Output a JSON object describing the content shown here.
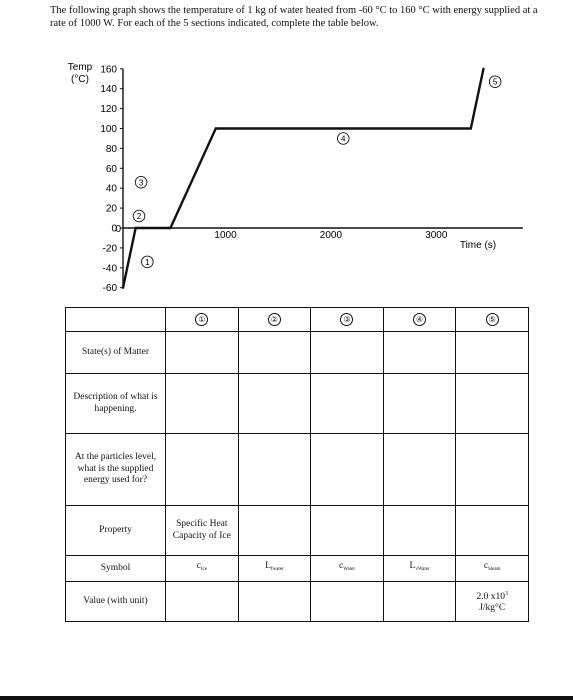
{
  "intro": "The following graph shows the temperature of 1 kg of water heated from -60 °C to 160 °C with energy supplied at a rate of 1000 W. For each of the 5 sections indicated, complete the table below.",
  "graph": {
    "y_label_line1": "Temp",
    "y_label_line2": "(°C)",
    "x_label": "Time (s)",
    "y_ticks": [
      "160",
      "140",
      "120",
      "100",
      "80",
      "60",
      "40",
      "20",
      "0",
      "-20",
      "-40",
      "-60"
    ],
    "x_ticks": [
      "0",
      "1000",
      "2000",
      "3000"
    ],
    "section_markers": [
      "①",
      "②",
      "③",
      "④",
      "⑤"
    ]
  },
  "chart_data": {
    "type": "line",
    "title": "",
    "xlabel": "Time (s)",
    "ylabel": "Temp (°C)",
    "xlim": [
      0,
      3700
    ],
    "ylim": [
      -60,
      160
    ],
    "series": [
      {
        "x": [
          0,
          120,
          450,
          880,
          3300,
          3420
        ],
        "y": [
          -60,
          0,
          0,
          100,
          100,
          160
        ]
      }
    ]
  },
  "table": {
    "col_headers": [
      "①",
      "②",
      "③",
      "④",
      "⑤"
    ],
    "rows": {
      "states_label": "State(s) of Matter",
      "description_label": "Description of what is happening.",
      "particles_label": "At the particles level, what is the supplied energy used for?",
      "property_label": "Property",
      "property_col1": "Specific Heat Capacity of Ice",
      "symbol_label": "Symbol",
      "symbols": [
        {
          "main": "c",
          "sub": "Ice"
        },
        {
          "main": "L",
          "sub": "fwater"
        },
        {
          "main": "c",
          "sub": "Water"
        },
        {
          "main": "L",
          "sub": "vWater"
        },
        {
          "main": "c",
          "sub": "Steam"
        }
      ],
      "value_label": "Value (with unit)",
      "steam_value_base": "2.0 x10",
      "steam_value_exp": "3",
      "steam_value_unit": "J/kg°C"
    }
  }
}
